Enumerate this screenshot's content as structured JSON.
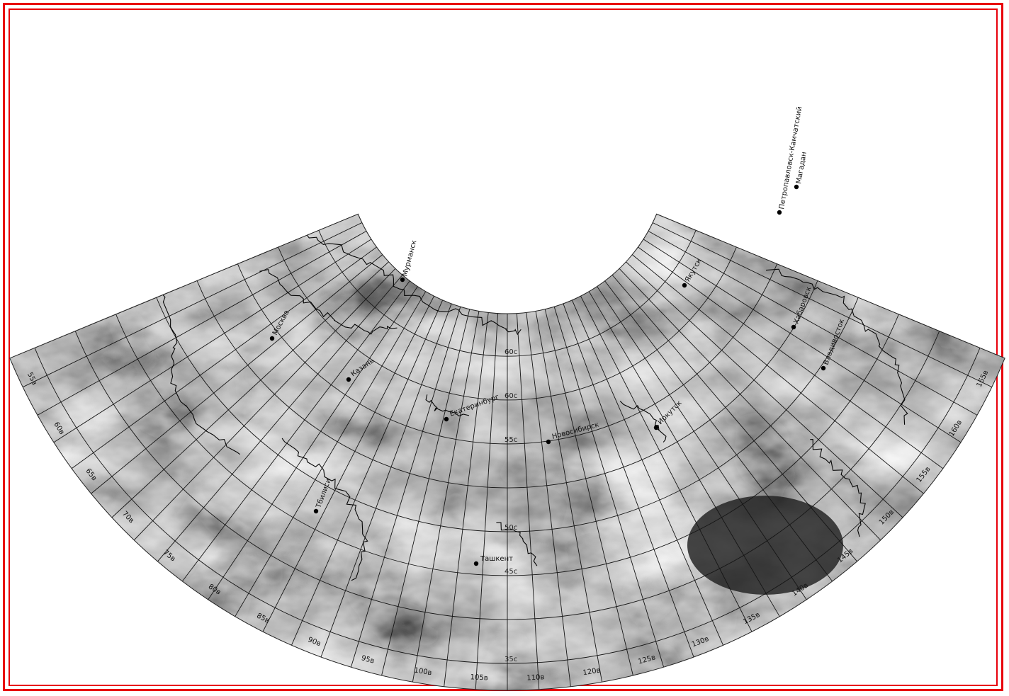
{
  "image": {
    "type": "satellite-composite",
    "colors": {
      "frame": "#e8000b",
      "background": "#ffffff",
      "grid": "#111111",
      "coast": "#050505"
    }
  },
  "latitude_labels": [
    "60c",
    "60c",
    "55c",
    "50c",
    "45c",
    "35c"
  ],
  "longitude_labels": [
    "55в",
    "60в",
    "65в",
    "70в",
    "75в",
    "80в",
    "85в",
    "90в",
    "95в",
    "100в",
    "105в",
    "110в",
    "120в",
    "125в",
    "130в",
    "135в",
    "140в",
    "145в",
    "150в",
    "155в",
    "160в",
    "165в"
  ],
  "cities": [
    {
      "name": "Мурманск",
      "rot": -75
    },
    {
      "name": "Москва",
      "rot": -62
    },
    {
      "name": "Казань",
      "rot": -35
    },
    {
      "name": "Екатеринбург",
      "rot": -20
    },
    {
      "name": "Новосибирск",
      "rot": -15
    },
    {
      "name": "Иркутск",
      "rot": -45
    },
    {
      "name": "Якутск",
      "rot": -60
    },
    {
      "name": "Хабаровск",
      "rot": -70
    },
    {
      "name": "Владивосток",
      "rot": -70
    },
    {
      "name": "Магадан",
      "rot": -80
    },
    {
      "name": "Петропавловск-Камчатский",
      "rot": -80
    },
    {
      "name": "Тбилиси",
      "rot": -70
    },
    {
      "name": "Ташкент",
      "rot": 0
    }
  ]
}
